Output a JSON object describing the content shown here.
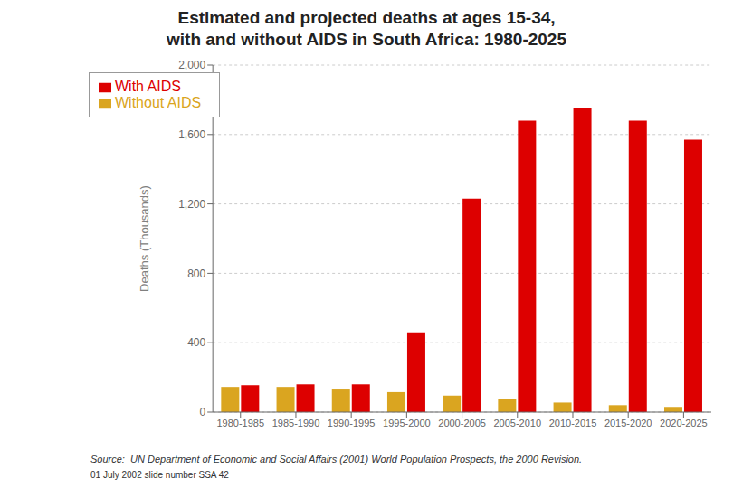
{
  "chart_data": {
    "type": "bar",
    "title": "Estimated and projected deaths at ages 15-34,",
    "subtitle": "with and without AIDS in South Africa: 1980-2025",
    "categories": [
      "1980-1985",
      "1985-1990",
      "1990-1995",
      "1995-2000",
      "2000-2005",
      "2005-2010",
      "2010-2015",
      "2015-2020",
      "2020-2025"
    ],
    "series": [
      {
        "name": "Without AIDS",
        "color": "#DAA520",
        "values": [
          145,
          145,
          130,
          115,
          95,
          75,
          55,
          40,
          30
        ]
      },
      {
        "name": "With AIDS",
        "color": "#DD0000",
        "values": [
          155,
          160,
          160,
          460,
          1230,
          1680,
          1750,
          1680,
          1570
        ]
      }
    ],
    "ylabel": "Deaths (Thousands)",
    "ylim": [
      0,
      2000
    ],
    "yticks": [
      0,
      400,
      800,
      {
        "value": 1200,
        "label": "1,200"
      },
      {
        "value": 1600,
        "label": "1,600"
      },
      {
        "value": 2000,
        "label": "2,000"
      }
    ],
    "grid": true,
    "legend": "upper left",
    "annotations": [
      "Source:  UN Department of Economic and Social Affairs (2001) World Population Prospects, the 2000 Revision.",
      "01 July 2002 slide number SSA 42"
    ]
  }
}
